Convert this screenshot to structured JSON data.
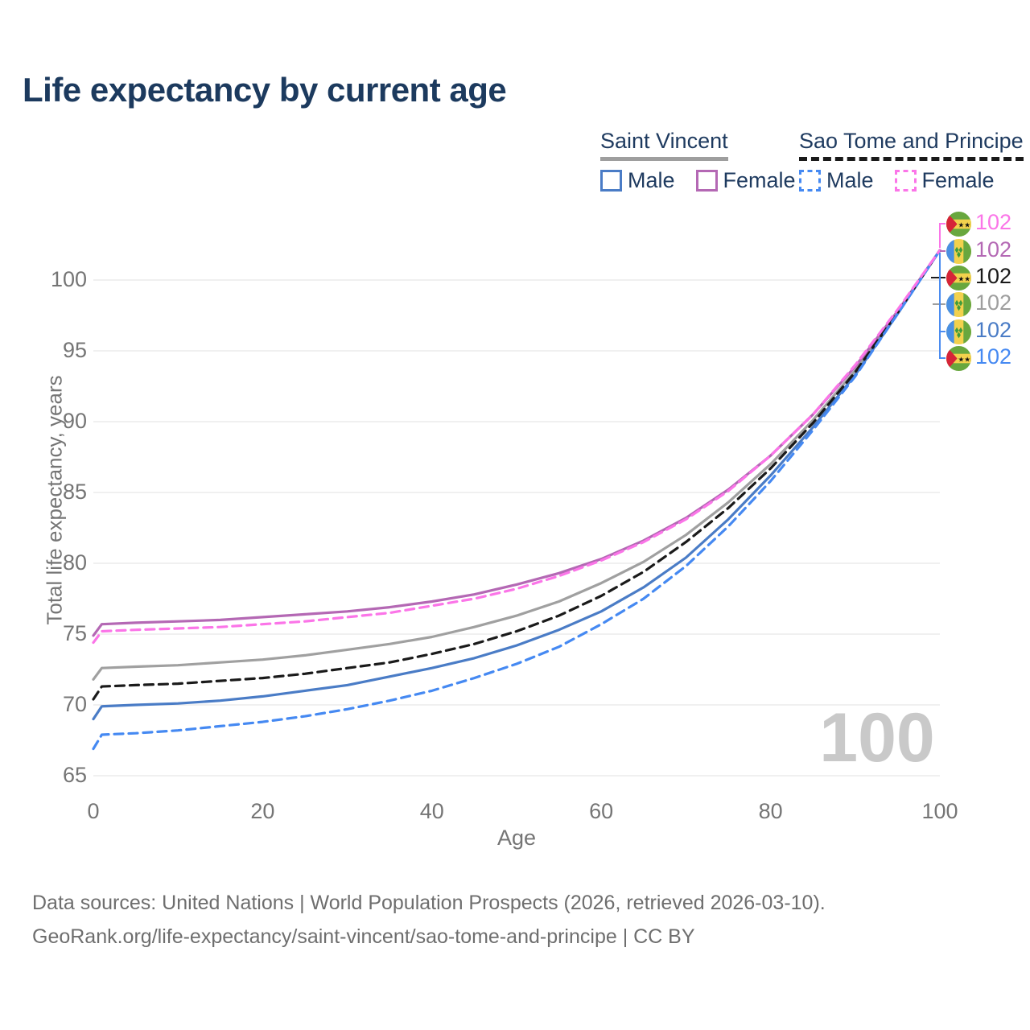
{
  "title": "Life expectancy by current age",
  "watermark": "100",
  "y_axis": {
    "label": "Total life expectancy, years",
    "ticks": [
      65,
      70,
      75,
      80,
      85,
      90,
      95,
      100
    ]
  },
  "x_axis": {
    "label": "Age",
    "ticks": [
      0,
      20,
      40,
      60,
      80,
      100
    ]
  },
  "legend": {
    "groups": [
      {
        "name": "Saint Vincent",
        "underline_style": "solid",
        "underline_color": "#9e9e9e",
        "items": [
          {
            "label": "Male",
            "color": "#4a7cc6",
            "style": "solid"
          },
          {
            "label": "Female",
            "color": "#b468b4",
            "style": "solid"
          }
        ]
      },
      {
        "name": "Sao Tome and Principe",
        "underline_style": "dashed",
        "underline_color": "#1a1a1a",
        "items": [
          {
            "label": "Male",
            "color": "#4589f2",
            "style": "dashed"
          },
          {
            "label": "Female",
            "color": "#fb75e8",
            "style": "dashed"
          }
        ]
      }
    ]
  },
  "chart_data": {
    "type": "line",
    "title": "Life expectancy by current age",
    "xlabel": "Age",
    "ylabel": "Total life expectancy, years",
    "xlim": [
      0,
      100
    ],
    "ylim": [
      63.5,
      103
    ],
    "grid": "horizontal-only",
    "x": [
      0,
      1,
      5,
      10,
      15,
      20,
      25,
      30,
      35,
      40,
      45,
      50,
      55,
      60,
      65,
      70,
      75,
      80,
      85,
      90,
      95,
      100
    ],
    "series": [
      {
        "name": "Saint Vincent Total",
        "country": "Saint Vincent",
        "group": "Total",
        "color": "#a0a0a0",
        "dash": false,
        "flag": "sv",
        "values": [
          71.8,
          72.6,
          72.7,
          72.8,
          73.0,
          73.2,
          73.5,
          73.9,
          74.3,
          74.8,
          75.5,
          76.3,
          77.3,
          78.6,
          80.1,
          82.0,
          84.3,
          87.0,
          90.1,
          93.6,
          97.7,
          102.1
        ]
      },
      {
        "name": "Saint Vincent Male",
        "country": "Saint Vincent",
        "group": "Male",
        "color": "#4a7cc6",
        "dash": false,
        "flag": "sv",
        "values": [
          69.0,
          69.9,
          70.0,
          70.1,
          70.3,
          70.6,
          71.0,
          71.4,
          72.0,
          72.6,
          73.3,
          74.2,
          75.3,
          76.6,
          78.3,
          80.4,
          83.1,
          86.2,
          89.6,
          93.3,
          97.6,
          102.1
        ]
      },
      {
        "name": "Saint Vincent Female",
        "country": "Saint Vincent",
        "group": "Female",
        "color": "#b468b4",
        "dash": false,
        "flag": "sv",
        "values": [
          74.9,
          75.7,
          75.8,
          75.9,
          76.0,
          76.2,
          76.4,
          76.6,
          76.9,
          77.3,
          77.8,
          78.5,
          79.3,
          80.3,
          81.6,
          83.2,
          85.2,
          87.6,
          90.5,
          93.9,
          97.8,
          102.1
        ]
      },
      {
        "name": "Sao Tome and Principe Total",
        "country": "Sao Tome and Principe",
        "group": "Total",
        "color": "#1a1a1a",
        "dash": true,
        "flag": "st",
        "values": [
          70.4,
          71.3,
          71.4,
          71.5,
          71.7,
          71.9,
          72.2,
          72.6,
          73.0,
          73.6,
          74.3,
          75.2,
          76.3,
          77.7,
          79.4,
          81.5,
          83.9,
          86.7,
          89.9,
          93.5,
          97.7,
          102.1
        ]
      },
      {
        "name": "Sao Tome and Principe Male",
        "country": "Sao Tome and Principe",
        "group": "Male",
        "color": "#4589f2",
        "dash": true,
        "flag": "st",
        "values": [
          66.9,
          67.9,
          68.0,
          68.2,
          68.5,
          68.8,
          69.2,
          69.7,
          70.3,
          71.0,
          71.9,
          72.9,
          74.1,
          75.7,
          77.5,
          79.8,
          82.6,
          85.8,
          89.4,
          93.2,
          97.6,
          102.1
        ]
      },
      {
        "name": "Sao Tome and Principe Female",
        "country": "Sao Tome and Principe",
        "group": "Female",
        "color": "#fb75e8",
        "dash": true,
        "flag": "st",
        "values": [
          74.4,
          75.2,
          75.3,
          75.4,
          75.5,
          75.7,
          75.9,
          76.2,
          76.5,
          77.0,
          77.5,
          78.2,
          79.1,
          80.2,
          81.5,
          83.1,
          85.1,
          87.6,
          90.5,
          94.0,
          97.9,
          102.1
        ]
      }
    ],
    "end_labels": [
      {
        "text": "102",
        "flag": "st",
        "color": "#fb75e8",
        "series": "Sao Tome and Principe Female"
      },
      {
        "text": "102",
        "flag": "sv",
        "color": "#b468b4",
        "series": "Saint Vincent Female"
      },
      {
        "text": "102",
        "flag": "st",
        "color": "#1a1a1a",
        "series": "Sao Tome and Principe Total"
      },
      {
        "text": "102",
        "flag": "sv",
        "color": "#9e9e9e",
        "series": "Saint Vincent Total"
      },
      {
        "text": "102",
        "flag": "sv",
        "color": "#4a7cc6",
        "series": "Saint Vincent Male"
      },
      {
        "text": "102",
        "flag": "st",
        "color": "#4589f2",
        "series": "Sao Tome and Principe Male"
      }
    ]
  },
  "footer": {
    "line1": "Data sources: United Nations | World Population Prospects (2026, retrieved 2026-03-10).",
    "line2": "GeoRank.org/life-expectancy/saint-vincent/sao-tome-and-principe | CC BY"
  }
}
